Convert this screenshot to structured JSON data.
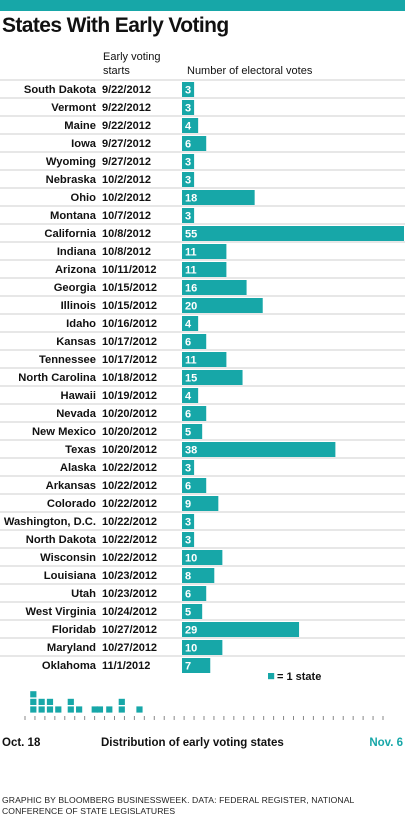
{
  "title": "States With Early Voting",
  "headers": {
    "start": "Early voting starts",
    "votes": "Number of electoral votes"
  },
  "colors": {
    "accent": "#17a7a8",
    "divider": "#cfcfcf"
  },
  "chart_data": [
    {
      "type": "bar",
      "orientation": "horizontal",
      "categories": [
        "South Dakota",
        "Vermont",
        "Maine",
        "Iowa",
        "Wyoming",
        "Nebraska",
        "Ohio",
        "Montana",
        "California",
        "Indiana",
        "Arizona",
        "Georgia",
        "Illinois",
        "Idaho",
        "Kansas",
        "Tennessee",
        "North Carolina",
        "Hawaii",
        "Nevada",
        "New Mexico",
        "Texas",
        "Alaska",
        "Arkansas",
        "Colorado",
        "Washington, D.C.",
        "North Dakota",
        "Wisconsin",
        "Louisiana",
        "Utah",
        "West Virginia",
        "Floridab",
        "Maryland",
        "Oklahoma"
      ],
      "start_dates": [
        "9/22/2012",
        "9/22/2012",
        "9/22/2012",
        "9/27/2012",
        "9/27/2012",
        "10/2/2012",
        "10/2/2012",
        "10/7/2012",
        "10/8/2012",
        "10/8/2012",
        "10/11/2012",
        "10/15/2012",
        "10/15/2012",
        "10/16/2012",
        "10/17/2012",
        "10/17/2012",
        "10/18/2012",
        "10/19/2012",
        "10/20/2012",
        "10/20/2012",
        "10/20/2012",
        "10/22/2012",
        "10/22/2012",
        "10/22/2012",
        "10/22/2012",
        "10/22/2012",
        "10/22/2012",
        "10/23/2012",
        "10/23/2012",
        "10/24/2012",
        "10/27/2012",
        "10/27/2012",
        "11/1/2012"
      ],
      "values": [
        3,
        3,
        4,
        6,
        3,
        3,
        18,
        3,
        55,
        11,
        11,
        16,
        20,
        4,
        6,
        11,
        15,
        4,
        6,
        5,
        38,
        3,
        6,
        9,
        3,
        3,
        10,
        8,
        6,
        5,
        29,
        10,
        7
      ],
      "xlim": [
        0,
        55
      ]
    },
    {
      "type": "dot-histogram",
      "x_start_label": "Oct. 18",
      "x_end_label": "Nov. 6",
      "xlabel": "Distribution of early voting states",
      "legend": "= 1 state",
      "ticks": 37,
      "counts": [
        0,
        0,
        0,
        0,
        0,
        0,
        0,
        0,
        3,
        0,
        0,
        0,
        0,
        0,
        0,
        0,
        2,
        0,
        0,
        0,
        0,
        0,
        0,
        0,
        2,
        0,
        0,
        0,
        0,
        0,
        0,
        0,
        1,
        0,
        0,
        0,
        0,
        0,
        0,
        0,
        0,
        0,
        0,
        0,
        2,
        0,
        0,
        0,
        0,
        0,
        0,
        0,
        1,
        0,
        0,
        0,
        0,
        0,
        0,
        0,
        0,
        0,
        0,
        0,
        0,
        0,
        0,
        1,
        0,
        0,
        0,
        0,
        1,
        0,
        0,
        0,
        0,
        0,
        0,
        0,
        0,
        1,
        0,
        0,
        0,
        0,
        0,
        0,
        0,
        0,
        0,
        0,
        0,
        2,
        0,
        0,
        0,
        0,
        0,
        0,
        0,
        0,
        0,
        0,
        0,
        0,
        0,
        0,
        0,
        0,
        1,
        0,
        0,
        0,
        0,
        0,
        0,
        0,
        0,
        0,
        0,
        0,
        0,
        0,
        0,
        0,
        0,
        0,
        0,
        0,
        0,
        0,
        0,
        0,
        0,
        0,
        0,
        0,
        0,
        0,
        0,
        0,
        0,
        0,
        0,
        0,
        0,
        0,
        0,
        0,
        0,
        0,
        0,
        0,
        0,
        0,
        0,
        0,
        0,
        0,
        0,
        0,
        0,
        0,
        0,
        0,
        0,
        0,
        0,
        0,
        0,
        0,
        0,
        0,
        0,
        0,
        0,
        0,
        0,
        0,
        0,
        0,
        0,
        0,
        0,
        0,
        0,
        0,
        0,
        0,
        0,
        0,
        0,
        0,
        0,
        0,
        0,
        0,
        0,
        0,
        0,
        0,
        0,
        0,
        0,
        0,
        0,
        0,
        0,
        0,
        0,
        0,
        0,
        0,
        0,
        0,
        0,
        0,
        0,
        0,
        0,
        0,
        0,
        0,
        0,
        0,
        0,
        0,
        0,
        0,
        0,
        0,
        0,
        0,
        0,
        0,
        0,
        0,
        0,
        0,
        0,
        0,
        0,
        0,
        0,
        0,
        0,
        0,
        0,
        0,
        0,
        0,
        0,
        0,
        0,
        0,
        0,
        0,
        0,
        0,
        0,
        0,
        0,
        0,
        0,
        0,
        0,
        0,
        0,
        0,
        0,
        0,
        0,
        0,
        0,
        0,
        0,
        0,
        0,
        0,
        0,
        0,
        0,
        0,
        0,
        0,
        0,
        0,
        0,
        0,
        0,
        0,
        0,
        0,
        0,
        0,
        0,
        0,
        0,
        0,
        0,
        0,
        0,
        0,
        0,
        0,
        0,
        0,
        0,
        0,
        0,
        0,
        0,
        0,
        0,
        0,
        0,
        0,
        0,
        0,
        0,
        0,
        0,
        0,
        0,
        0,
        0,
        0,
        0,
        0,
        0,
        0,
        0,
        0,
        0,
        0,
        0,
        0,
        0,
        0,
        0,
        0,
        0,
        0,
        0
      ]
    }
  ],
  "footer": "GRAPHIC BY BLOOMBERG BUSINESSWEEK. DATA: FEDERAL REGISTER, NATIONAL CONFERENCE OF STATE LEGISLATURES"
}
